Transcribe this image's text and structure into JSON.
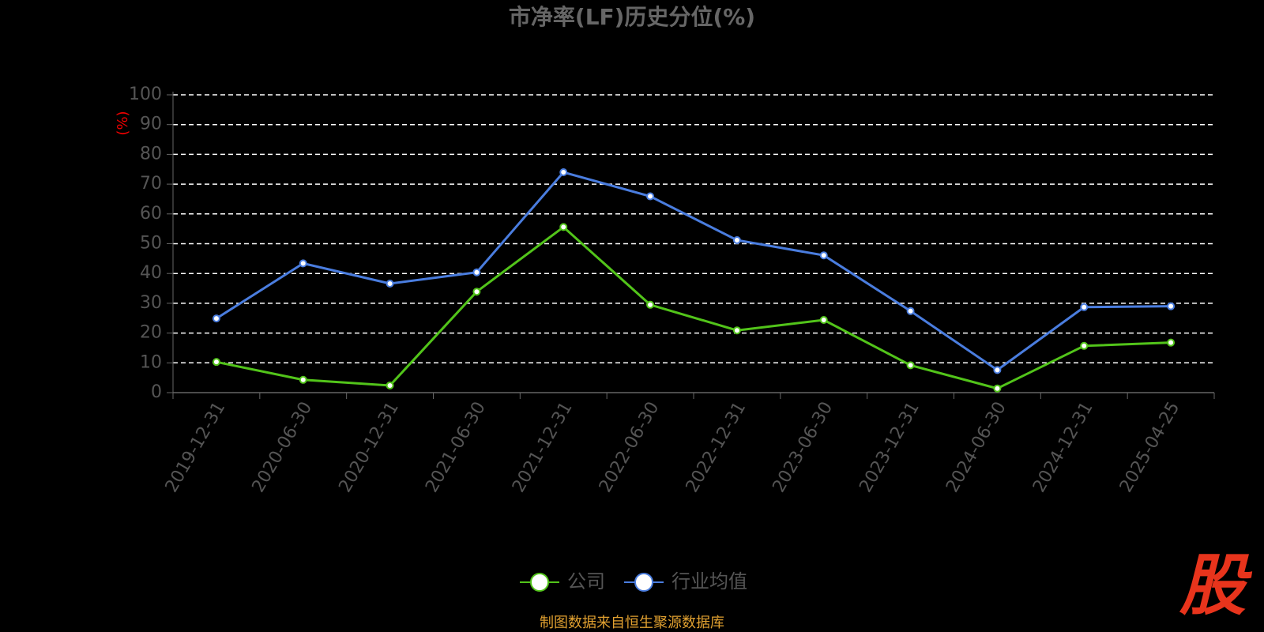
{
  "chart_data": {
    "type": "line",
    "title": "市净率(LF)历史分位(%)",
    "y_label": "(%)",
    "categories": [
      "2019-12-31",
      "2020-06-30",
      "2020-12-31",
      "2021-06-30",
      "2021-12-31",
      "2022-06-30",
      "2022-12-31",
      "2023-06-30",
      "2023-12-31",
      "2024-06-30",
      "2024-12-31",
      "2025-04-25"
    ],
    "series": [
      {
        "name": "公司",
        "color": "#52c41a",
        "values": [
          10.3,
          4.3,
          2.4,
          33.9,
          55.6,
          29.5,
          20.9,
          24.4,
          9.2,
          1.4,
          15.7,
          16.8
        ]
      },
      {
        "name": "行业均值",
        "color": "#4a7ddf",
        "values": [
          24.9,
          43.4,
          36.6,
          40.4,
          74.0,
          65.9,
          51.2,
          46.1,
          27.4,
          7.6,
          28.7,
          29.0
        ]
      }
    ],
    "ylim": [
      0,
      100
    ],
    "yticks": [
      0,
      10,
      20,
      30,
      40,
      50,
      60,
      70,
      80,
      90,
      100
    ],
    "grid": true,
    "legend": "bottom",
    "source": "制图数据来自恒生聚源数据库",
    "watermark": "股"
  }
}
